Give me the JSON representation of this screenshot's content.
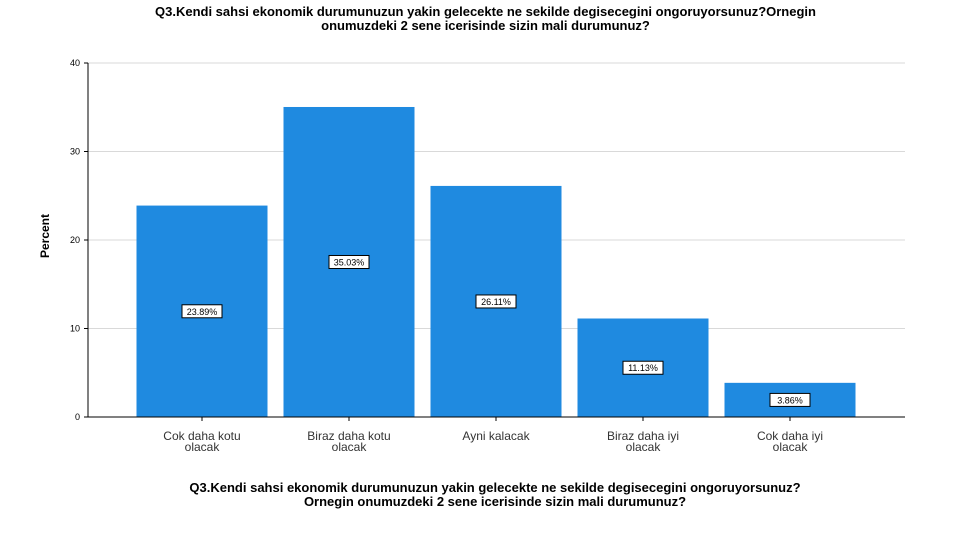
{
  "chart_data": {
    "type": "bar",
    "title": [
      "Q3.Kendi sahsi ekonomik durumunuzun yakin gelecekte ne sekilde degisecegini ongoruyorsunuz?Ornegin",
      "onumuzdeki 2 sene icerisinde sizin mali durumunuz?"
    ],
    "xlabel": [
      "Q3.Kendi sahsi ekonomik durumunuzun yakin gelecekte ne sekilde degisecegini ongoruyorsunuz?",
      "Ornegin onumuzdeki 2 sene icerisinde sizin mali durumunuz?"
    ],
    "ylabel": "Percent",
    "ylim": [
      0,
      40
    ],
    "yticks": [
      "0",
      "10",
      "20",
      "30",
      "40"
    ],
    "grid": true,
    "bar_color": "#1f8ae0",
    "categories": [
      [
        "Cok daha kotu",
        "olacak"
      ],
      [
        "Biraz daha kotu",
        "olacak"
      ],
      [
        "Ayni kalacak"
      ],
      [
        "Biraz daha iyi",
        "olacak"
      ],
      [
        "Cok daha iyi",
        "olacak"
      ]
    ],
    "values": [
      23.89,
      35.03,
      26.11,
      11.13,
      3.86
    ],
    "data_labels": [
      "23.89%",
      "35.03%",
      "26.11%",
      "11.13%",
      "3.86%"
    ]
  }
}
